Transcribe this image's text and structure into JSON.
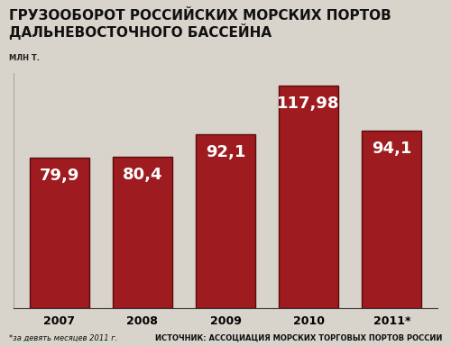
{
  "chart_data": {
    "type": "bar",
    "title": "ГРУЗООБОРОТ РОССИЙСКИХ МОРСКИХ ПОРТОВ\nДАЛЬНЕВОСТОЧНОГО БАССЕЙНА",
    "subtitle": "МЛН Т.",
    "categories": [
      "2007",
      "2008",
      "2009",
      "2010",
      "2011*"
    ],
    "values": [
      79.9,
      80.4,
      92.1,
      117.98,
      94.1
    ],
    "value_labels": [
      "79,9",
      "80,4",
      "92,1",
      "117,98",
      "94,1"
    ],
    "data_labels": true,
    "color": "#9e1b1f",
    "ylim": [
      0,
      125
    ],
    "yticks": [],
    "grid": false,
    "tick_labels": "x",
    "annotations": [
      "*за девять месяцев 2011 г.",
      "ИСТОЧНИК: АССОЦИАЦИЯ МОРСКИХ ТОРГОВЫХ ПОРТОВ РОССИИ"
    ]
  }
}
